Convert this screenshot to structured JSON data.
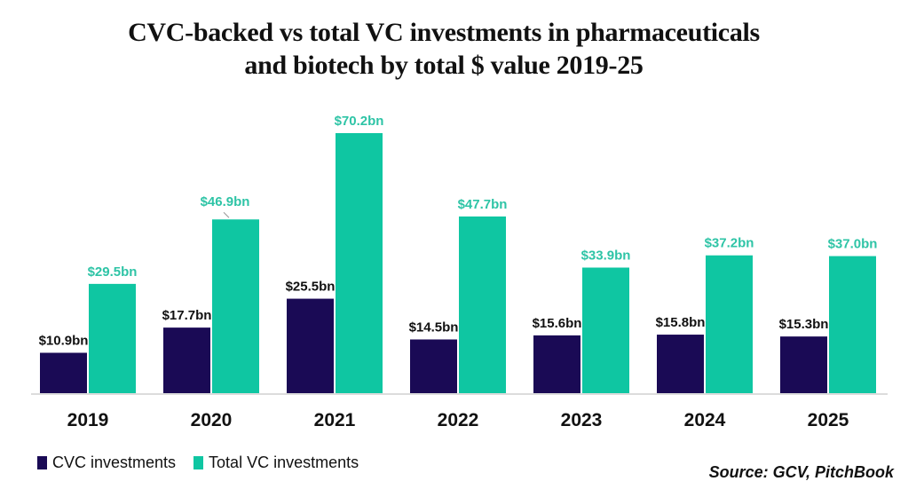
{
  "chart_data": {
    "type": "bar",
    "title": "CVC-backed vs total VC investments in pharmaceuticals and biotech by total $ value 2019-25",
    "title_lines": [
      "CVC-backed vs total VC investments in pharmaceuticals",
      "and biotech by total $ value 2019-25"
    ],
    "xlabel": "",
    "ylabel": "",
    "ylim": [
      0,
      75
    ],
    "grid": false,
    "legend_position": "bottom-left",
    "categories": [
      "2019",
      "2020",
      "2021",
      "2022",
      "2023",
      "2024",
      "2025"
    ],
    "series": [
      {
        "name": "CVC investments",
        "color": "#1a0a55",
        "label_color": "#111111",
        "values": [
          10.9,
          17.7,
          25.5,
          14.5,
          15.6,
          15.8,
          15.3
        ],
        "labels": [
          "$10.9bn",
          "$17.7bn",
          "$25.5bn",
          "$14.5bn",
          "$15.6bn",
          "$15.8bn",
          "$15.3bn"
        ]
      },
      {
        "name": "Total VC investments",
        "color": "#0fc6a2",
        "label_color": "#2ec4a6",
        "values": [
          29.5,
          46.9,
          70.2,
          47.7,
          33.9,
          37.2,
          37.0
        ],
        "labels": [
          "$29.5bn",
          "$46.9bn",
          "$70.2bn",
          "$47.7bn",
          "$33.9bn",
          "$37.2bn",
          "$37.0bn"
        ]
      }
    ],
    "source": "Source: GCV, PitchBook"
  },
  "legend": {
    "items": [
      {
        "label": "CVC investments",
        "color": "#1a0a55"
      },
      {
        "label": "Total VC investments",
        "color": "#0fc6a2"
      }
    ]
  }
}
